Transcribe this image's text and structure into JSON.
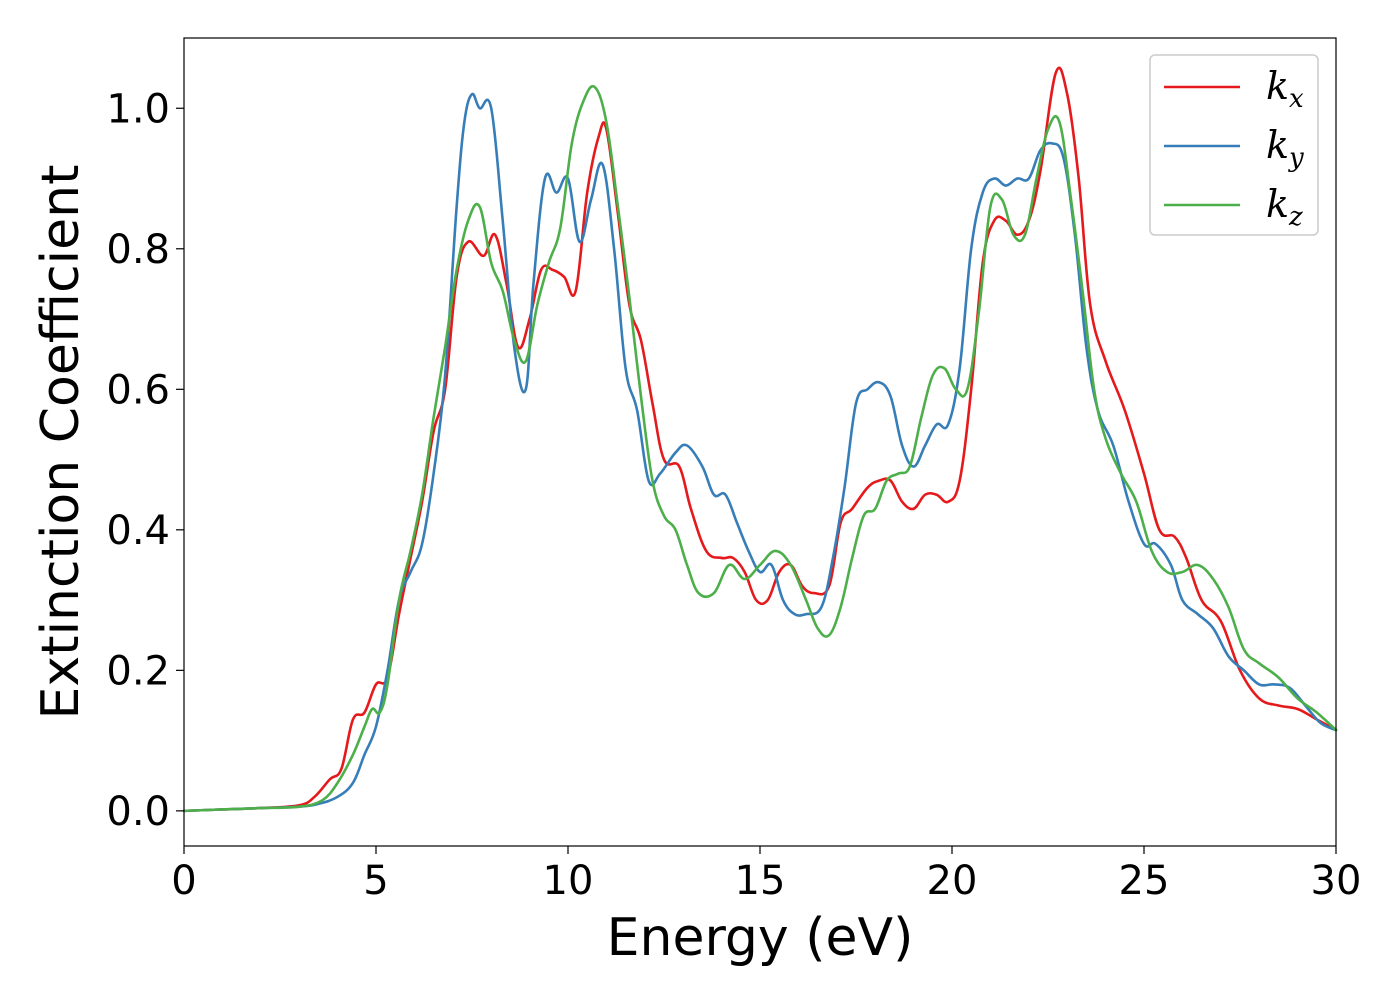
{
  "chart_data": {
    "type": "line",
    "title": "",
    "xlabel": "Energy (eV)",
    "ylabel": "Extinction Coefficient",
    "xlim": [
      0,
      30
    ],
    "ylim": [
      -0.05,
      1.1
    ],
    "xticks": [
      "0",
      "5",
      "10",
      "15",
      "20",
      "25",
      "30"
    ],
    "yticks": [
      "0.0",
      "0.2",
      "0.4",
      "0.6",
      "0.8",
      "1.0"
    ],
    "grid": false,
    "legend_position": "top-right",
    "series": [
      {
        "name": "k_x",
        "label_base": "k",
        "label_sub": "x",
        "color": "#e41a1c",
        "x": [
          0,
          1,
          2,
          3,
          3.4,
          3.8,
          4.1,
          4.4,
          4.7,
          5.0,
          5.3,
          5.6,
          5.9,
          6.2,
          6.5,
          6.8,
          7.1,
          7.4,
          7.8,
          8.1,
          8.4,
          8.7,
          9.0,
          9.3,
          9.6,
          9.9,
          10.2,
          10.5,
          10.8,
          11.0,
          11.3,
          11.6,
          11.9,
          12.2,
          12.5,
          12.9,
          13.2,
          13.6,
          14.0,
          14.3,
          14.6,
          14.9,
          15.2,
          15.5,
          15.8,
          16.1,
          16.4,
          16.8,
          17.1,
          17.4,
          17.8,
          18.1,
          18.4,
          18.7,
          19.0,
          19.3,
          19.6,
          19.9,
          20.2,
          20.5,
          20.8,
          21.1,
          21.4,
          21.7,
          22.0,
          22.3,
          22.7,
          23.0,
          23.3,
          23.6,
          24.0,
          24.5,
          25.0,
          25.4,
          25.8,
          26.1,
          26.5,
          27.0,
          27.5,
          28.0,
          28.5,
          29.0,
          29.5,
          30.0
        ],
        "y": [
          0.0,
          0.002,
          0.004,
          0.008,
          0.02,
          0.045,
          0.06,
          0.13,
          0.14,
          0.18,
          0.19,
          0.28,
          0.36,
          0.44,
          0.54,
          0.6,
          0.76,
          0.81,
          0.79,
          0.82,
          0.75,
          0.66,
          0.7,
          0.77,
          0.77,
          0.76,
          0.74,
          0.88,
          0.96,
          0.97,
          0.85,
          0.72,
          0.67,
          0.58,
          0.5,
          0.49,
          0.43,
          0.37,
          0.36,
          0.36,
          0.34,
          0.3,
          0.3,
          0.34,
          0.35,
          0.32,
          0.31,
          0.32,
          0.41,
          0.43,
          0.46,
          0.47,
          0.47,
          0.44,
          0.43,
          0.45,
          0.45,
          0.44,
          0.47,
          0.6,
          0.78,
          0.84,
          0.84,
          0.82,
          0.84,
          0.91,
          1.05,
          1.02,
          0.9,
          0.72,
          0.64,
          0.57,
          0.48,
          0.4,
          0.39,
          0.36,
          0.3,
          0.27,
          0.2,
          0.16,
          0.15,
          0.145,
          0.13,
          0.115
        ]
      },
      {
        "name": "k_y",
        "label_base": "k",
        "label_sub": "y",
        "color": "#377eb8",
        "x": [
          0,
          1,
          2,
          3,
          3.5,
          4.0,
          4.4,
          4.7,
          5.0,
          5.3,
          5.6,
          5.9,
          6.2,
          6.5,
          6.8,
          7.1,
          7.3,
          7.5,
          7.7,
          8.0,
          8.3,
          8.6,
          8.9,
          9.1,
          9.4,
          9.7,
          10.0,
          10.3,
          10.6,
          10.9,
          11.2,
          11.5,
          11.8,
          12.1,
          12.4,
          12.8,
          13.1,
          13.5,
          13.8,
          14.1,
          14.4,
          14.7,
          15.0,
          15.3,
          15.6,
          15.9,
          16.2,
          16.6,
          16.9,
          17.2,
          17.5,
          17.8,
          18.1,
          18.4,
          18.7,
          19.0,
          19.3,
          19.6,
          19.9,
          20.2,
          20.5,
          20.8,
          21.1,
          21.4,
          21.7,
          22.0,
          22.3,
          22.6,
          22.9,
          23.2,
          23.5,
          23.8,
          24.2,
          24.6,
          25.0,
          25.3,
          25.7,
          26.0,
          26.4,
          26.8,
          27.2,
          27.6,
          28.0,
          28.4,
          28.8,
          29.2,
          29.6,
          30.0
        ],
        "y": [
          0.0,
          0.002,
          0.004,
          0.006,
          0.01,
          0.02,
          0.04,
          0.08,
          0.12,
          0.2,
          0.3,
          0.34,
          0.38,
          0.48,
          0.62,
          0.86,
          0.98,
          1.02,
          1.0,
          1.0,
          0.84,
          0.66,
          0.6,
          0.75,
          0.9,
          0.88,
          0.9,
          0.81,
          0.87,
          0.92,
          0.8,
          0.63,
          0.57,
          0.47,
          0.48,
          0.51,
          0.52,
          0.49,
          0.45,
          0.45,
          0.41,
          0.37,
          0.34,
          0.35,
          0.3,
          0.28,
          0.28,
          0.29,
          0.36,
          0.46,
          0.58,
          0.6,
          0.61,
          0.59,
          0.52,
          0.49,
          0.52,
          0.55,
          0.55,
          0.63,
          0.8,
          0.88,
          0.9,
          0.89,
          0.9,
          0.9,
          0.94,
          0.95,
          0.93,
          0.82,
          0.66,
          0.57,
          0.52,
          0.44,
          0.38,
          0.38,
          0.35,
          0.3,
          0.28,
          0.26,
          0.22,
          0.2,
          0.18,
          0.18,
          0.175,
          0.15,
          0.125,
          0.115
        ]
      },
      {
        "name": "k_z",
        "label_base": "k",
        "label_sub": "z",
        "color": "#4daf4a",
        "x": [
          0,
          1,
          2,
          3,
          3.6,
          4.0,
          4.4,
          4.7,
          4.9,
          5.1,
          5.3,
          5.6,
          5.9,
          6.2,
          6.5,
          6.8,
          7.1,
          7.4,
          7.7,
          8.0,
          8.3,
          8.6,
          8.9,
          9.2,
          9.5,
          9.8,
          10.1,
          10.4,
          10.7,
          11.0,
          11.3,
          11.6,
          11.9,
          12.2,
          12.5,
          12.8,
          13.1,
          13.4,
          13.8,
          14.2,
          14.6,
          15.0,
          15.4,
          15.8,
          16.2,
          16.5,
          16.8,
          17.1,
          17.4,
          17.7,
          18.0,
          18.3,
          18.6,
          18.9,
          19.2,
          19.5,
          19.8,
          20.1,
          20.4,
          20.7,
          21.0,
          21.3,
          21.6,
          21.9,
          22.2,
          22.5,
          22.8,
          23.1,
          23.4,
          23.7,
          24.0,
          24.4,
          24.8,
          25.2,
          25.6,
          26.0,
          26.4,
          26.8,
          27.2,
          27.6,
          28.0,
          28.5,
          29.0,
          29.5,
          30.0
        ],
        "y": [
          0.0,
          0.002,
          0.004,
          0.006,
          0.015,
          0.04,
          0.08,
          0.12,
          0.145,
          0.14,
          0.18,
          0.3,
          0.37,
          0.45,
          0.56,
          0.66,
          0.77,
          0.84,
          0.86,
          0.78,
          0.74,
          0.67,
          0.64,
          0.72,
          0.78,
          0.83,
          0.95,
          1.01,
          1.03,
          0.98,
          0.86,
          0.73,
          0.59,
          0.47,
          0.42,
          0.4,
          0.35,
          0.31,
          0.31,
          0.35,
          0.33,
          0.35,
          0.37,
          0.35,
          0.3,
          0.26,
          0.25,
          0.29,
          0.36,
          0.42,
          0.43,
          0.47,
          0.48,
          0.49,
          0.56,
          0.62,
          0.63,
          0.6,
          0.6,
          0.71,
          0.86,
          0.87,
          0.82,
          0.82,
          0.9,
          0.97,
          0.98,
          0.87,
          0.74,
          0.6,
          0.53,
          0.48,
          0.44,
          0.37,
          0.34,
          0.34,
          0.35,
          0.33,
          0.29,
          0.23,
          0.21,
          0.19,
          0.16,
          0.14,
          0.115
        ]
      }
    ]
  }
}
